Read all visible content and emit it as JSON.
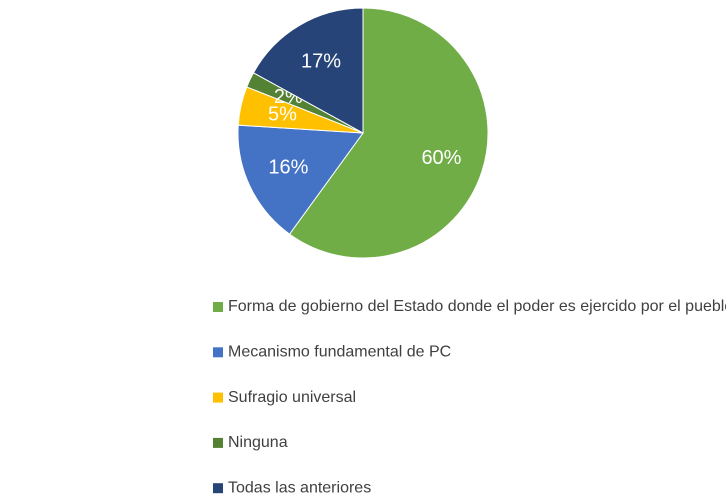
{
  "chart_data": {
    "type": "pie",
    "categories": [
      "Forma de gobierno del Estado donde el poder es ejercido por el pueblo",
      "Mecanismo fundamental de PC",
      "Sufragio universal",
      "Ninguna",
      "Todas las anteriores"
    ],
    "values": [
      60,
      16,
      5,
      2,
      17
    ],
    "value_labels": [
      "60%",
      "16%",
      "5%",
      "2%",
      "17%"
    ],
    "colors": [
      "#70ad47",
      "#4472c4",
      "#ffc000",
      "#548235",
      "#264478"
    ]
  }
}
